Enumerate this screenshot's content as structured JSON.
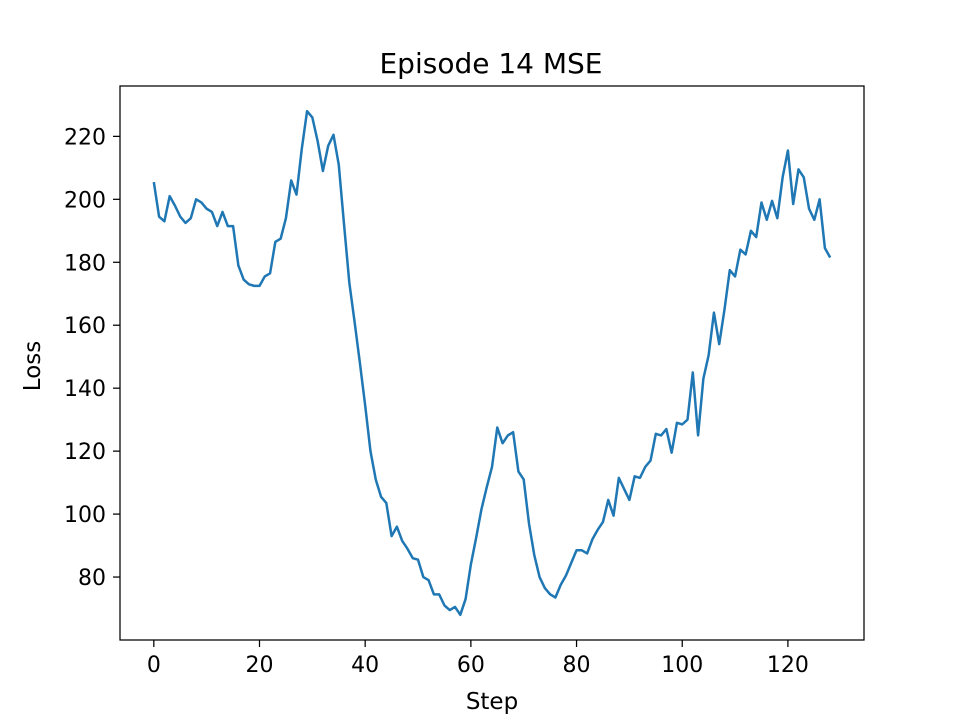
{
  "chart_data": {
    "type": "line",
    "title": "Episode 14 MSE",
    "xlabel": "Step",
    "ylabel": "Loss",
    "xlim": [
      -6.4,
      134.4
    ],
    "ylim": [
      60,
      236
    ],
    "xticks": [
      0,
      20,
      40,
      60,
      80,
      100,
      120
    ],
    "yticks": [
      80,
      100,
      120,
      140,
      160,
      180,
      200,
      220
    ],
    "grid": false,
    "colors": {
      "series": "#1f77b4"
    },
    "series": [
      {
        "x": [
          0,
          1,
          2,
          3,
          4,
          5,
          6,
          7,
          8,
          9,
          10,
          11,
          12,
          13,
          14,
          15,
          16,
          17,
          18,
          19,
          20,
          21,
          22,
          23,
          24,
          25,
          26,
          27,
          28,
          29,
          30,
          31,
          32,
          33,
          34,
          35,
          36,
          37,
          38,
          39,
          40,
          41,
          42,
          43,
          44,
          45,
          46,
          47,
          48,
          49,
          50,
          51,
          52,
          53,
          54,
          55,
          56,
          57,
          58,
          59,
          60,
          61,
          62,
          63,
          64,
          65,
          66,
          67,
          68,
          69,
          70,
          71,
          72,
          73,
          74,
          75,
          76,
          77,
          78,
          79,
          80,
          81,
          82,
          83,
          84,
          85,
          86,
          87,
          88,
          89,
          90,
          91,
          92,
          93,
          94,
          95,
          96,
          97,
          98,
          99,
          100,
          101,
          102,
          103,
          104,
          105,
          106,
          107,
          108,
          109,
          110,
          111,
          112,
          113,
          114,
          115,
          116,
          117,
          118,
          119,
          120,
          121,
          122,
          123,
          124,
          125,
          126,
          127,
          128
        ],
        "values": [
          205.5,
          194.5,
          193,
          201,
          198,
          194.5,
          192.5,
          194,
          200,
          199,
          197,
          196,
          191.5,
          196,
          191.5,
          191.5,
          179,
          174.5,
          173,
          172.5,
          172.5,
          175.5,
          176.5,
          186.5,
          187.5,
          194,
          206,
          201.5,
          216,
          228,
          226,
          218.5,
          209,
          217,
          220.5,
          211,
          192,
          173.5,
          161,
          148,
          134.5,
          120,
          111,
          105.5,
          103.5,
          93,
          96,
          91.5,
          89,
          86,
          85.5,
          80,
          79,
          74.5,
          74.5,
          71,
          69.5,
          70.5,
          68,
          73,
          84,
          92.5,
          101.5,
          108.5,
          115,
          127.5,
          122.5,
          125,
          126,
          113.5,
          111,
          97,
          87,
          80,
          76.5,
          74.5,
          73.5,
          77.5,
          80.5,
          84.5,
          88.5,
          88.5,
          87.5,
          92,
          95,
          97.5,
          104.5,
          99.5,
          111.5,
          108,
          104.5,
          112,
          111.5,
          115,
          117,
          125.5,
          125,
          127,
          119.5,
          129,
          128.5,
          130,
          145,
          125,
          143,
          150.5,
          164,
          154,
          165,
          177.5,
          175.5,
          184,
          182.5,
          190,
          188,
          199,
          193.5,
          199.5,
          194,
          207,
          215.5,
          198.5,
          209.5,
          207,
          197,
          193.5,
          200,
          184.5,
          181.5
        ]
      }
    ]
  }
}
